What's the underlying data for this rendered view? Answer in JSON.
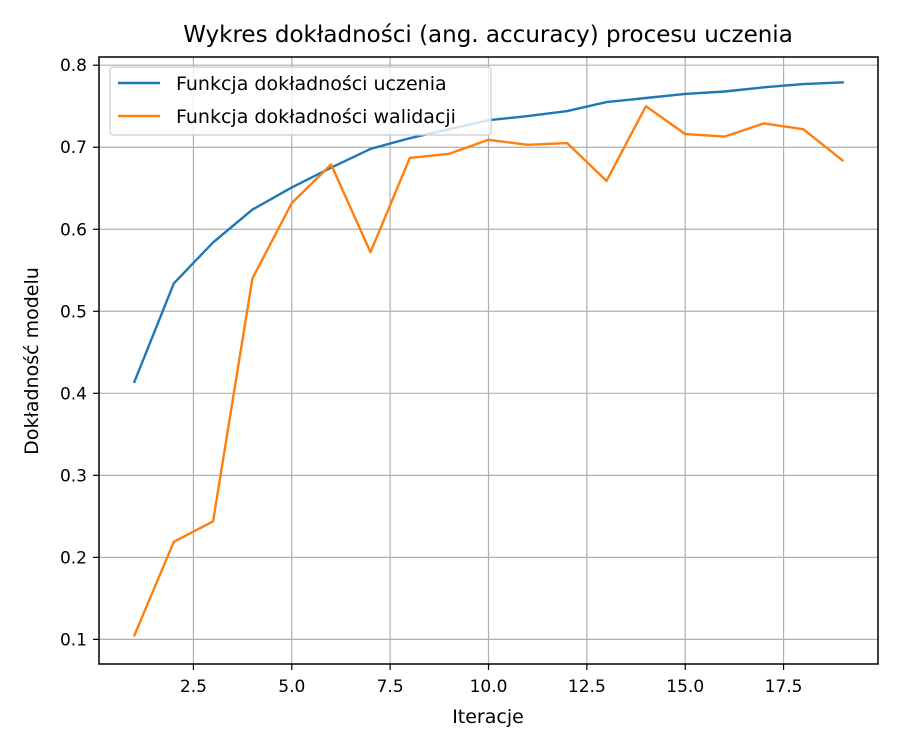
{
  "chart_data": {
    "type": "line",
    "title": "Wykres dokładności (ang. accuracy) procesu uczenia",
    "xlabel": "Iteracje",
    "ylabel": "Dokładność modelu",
    "xlim": [
      0.1,
      19.9
    ],
    "ylim": [
      0.07,
      0.81
    ],
    "xticks": [
      2.5,
      5.0,
      7.5,
      10.0,
      12.5,
      15.0,
      17.5
    ],
    "xtick_labels": [
      "2.5",
      "5.0",
      "7.5",
      "10.0",
      "12.5",
      "15.0",
      "17.5"
    ],
    "yticks": [
      0.1,
      0.2,
      0.3,
      0.4,
      0.5,
      0.6,
      0.7,
      0.8
    ],
    "ytick_labels": [
      "0.1",
      "0.2",
      "0.3",
      "0.4",
      "0.5",
      "0.6",
      "0.7",
      "0.8"
    ],
    "grid": true,
    "legend_position": "upper-left",
    "x": [
      1,
      2,
      3,
      4,
      5,
      6,
      7,
      8,
      9,
      10,
      11,
      12,
      13,
      14,
      15,
      16,
      17,
      18,
      19
    ],
    "series": [
      {
        "name": "Funkcja dokładności uczenia",
        "color": "#1f77b4",
        "values": [
          0.414,
          0.534,
          0.584,
          0.624,
          0.651,
          0.675,
          0.698,
          0.711,
          0.722,
          0.733,
          0.738,
          0.744,
          0.755,
          0.76,
          0.765,
          0.768,
          0.773,
          0.777,
          0.779
        ]
      },
      {
        "name": "Funkcja dokładności walidacji",
        "color": "#ff7f0e",
        "values": [
          0.105,
          0.219,
          0.244,
          0.54,
          0.632,
          0.679,
          0.572,
          0.687,
          0.692,
          0.709,
          0.703,
          0.705,
          0.659,
          0.75,
          0.716,
          0.713,
          0.729,
          0.722,
          0.684
        ]
      }
    ]
  }
}
